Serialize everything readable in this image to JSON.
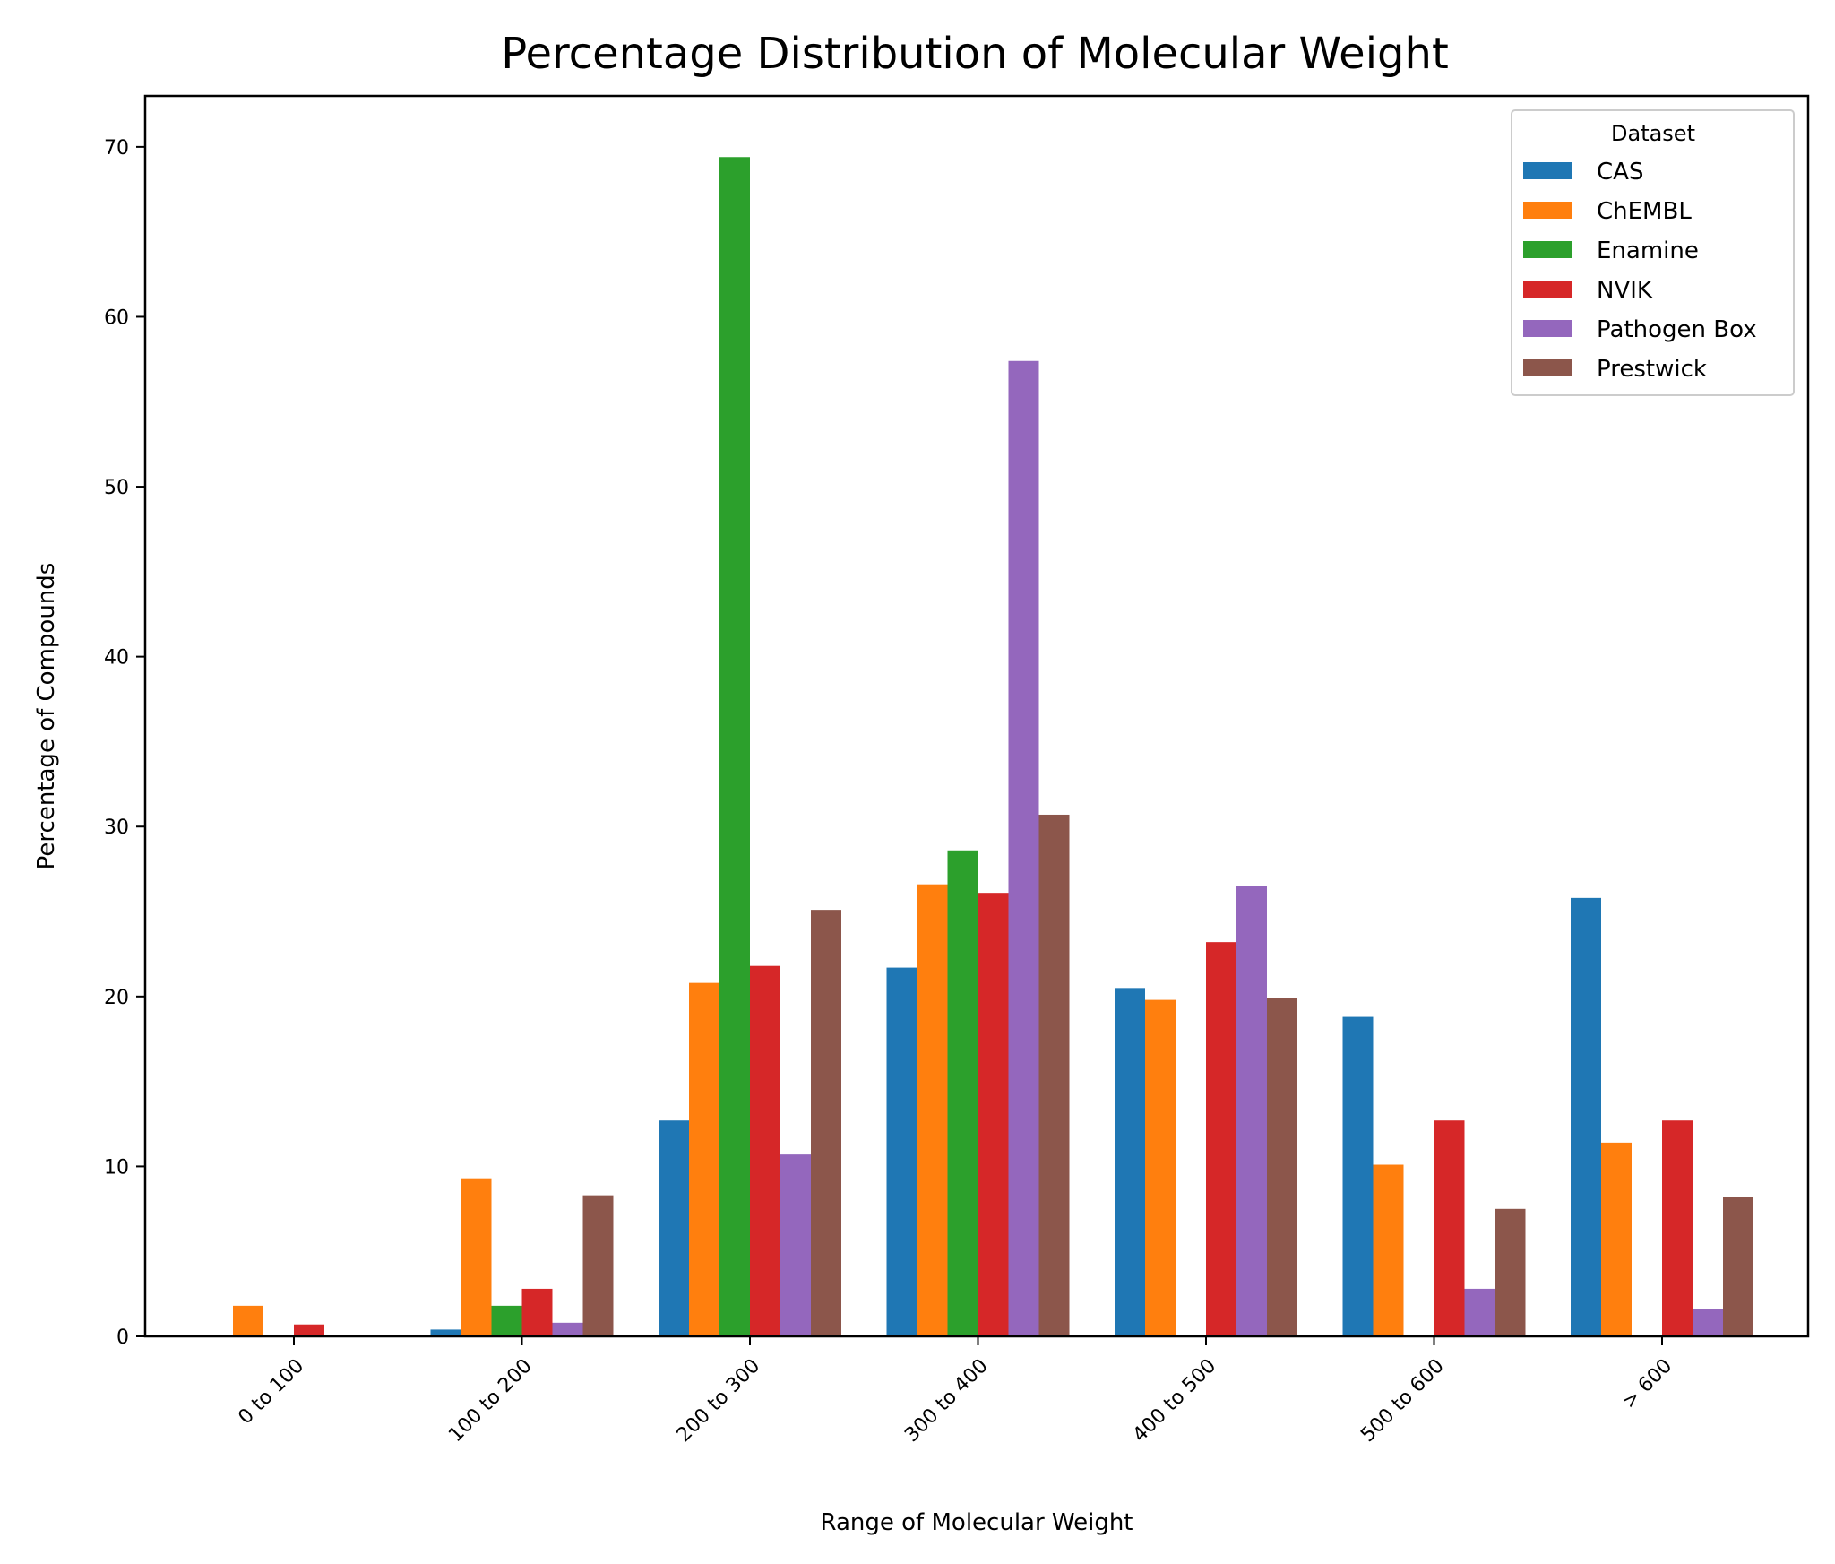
{
  "chart_data": {
    "type": "bar",
    "title": "Percentage Distribution of Molecular Weight",
    "xlabel": "Range of Molecular Weight",
    "ylabel": "Percentage of Compounds",
    "categories": [
      "0 to 100",
      "100 to 200",
      "200 to 300",
      "300 to 400",
      "400 to 500",
      "500 to 600",
      "> 600"
    ],
    "ylim": [
      0,
      73
    ],
    "yticks": [
      0,
      10,
      20,
      30,
      40,
      50,
      60,
      70
    ],
    "grid": false,
    "legend": {
      "title": "Dataset",
      "position": "top-right"
    },
    "series": [
      {
        "name": "CAS",
        "color": "#1f77b4",
        "values": [
          0.0,
          0.4,
          12.7,
          21.7,
          20.5,
          18.8,
          25.8
        ]
      },
      {
        "name": "ChEMBL",
        "color": "#ff7f0e",
        "values": [
          1.8,
          9.3,
          20.8,
          26.6,
          19.8,
          10.1,
          11.4
        ]
      },
      {
        "name": "Enamine",
        "color": "#2ca02c",
        "values": [
          0.0,
          1.8,
          69.4,
          28.6,
          0.0,
          0.0,
          0.0
        ]
      },
      {
        "name": "NVIK",
        "color": "#d62728",
        "values": [
          0.7,
          2.8,
          21.8,
          26.1,
          23.2,
          12.7,
          12.7
        ]
      },
      {
        "name": "Pathogen Box",
        "color": "#9467bd",
        "values": [
          0.0,
          0.8,
          10.7,
          57.4,
          26.5,
          2.8,
          1.6
        ]
      },
      {
        "name": "Prestwick",
        "color": "#8c564b",
        "values": [
          0.1,
          8.3,
          25.1,
          30.7,
          19.9,
          7.5,
          8.2
        ]
      }
    ]
  }
}
